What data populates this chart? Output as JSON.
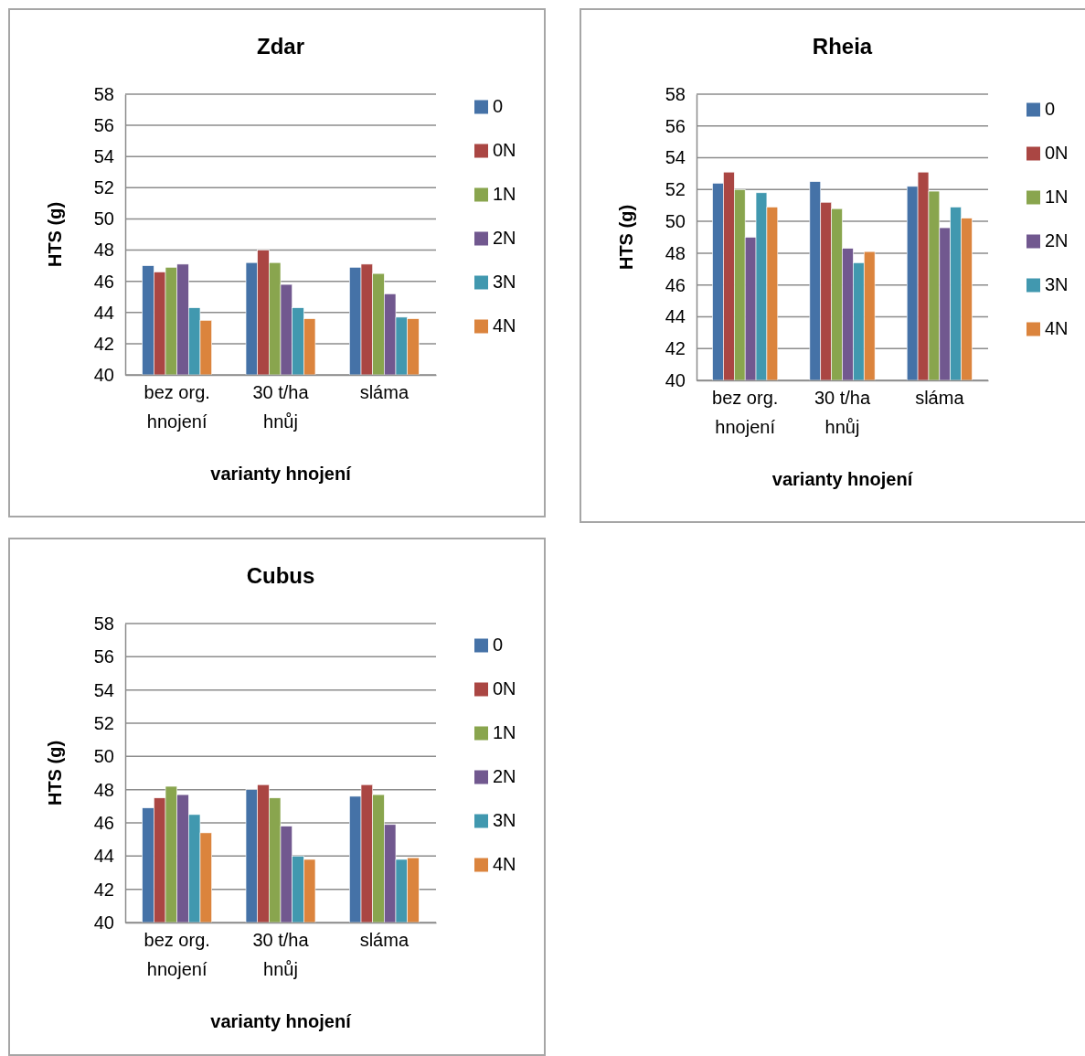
{
  "chart_data": [
    {
      "type": "bar",
      "title": "Zdar",
      "xlabel": "varianty hnojení",
      "ylabel": "HTS (g)",
      "categories": [
        "bez org. hnojení",
        "30 t/ha hnůj",
        "sláma"
      ],
      "ylim": [
        40,
        58
      ],
      "yticks": [
        40,
        42,
        44,
        46,
        48,
        50,
        52,
        54,
        56,
        58
      ],
      "grid": "y",
      "legend": "right",
      "series": [
        {
          "name": "0",
          "color": "#4572a7",
          "values": [
            47.0,
            47.2,
            46.9
          ]
        },
        {
          "name": "0N",
          "color": "#aa4643",
          "values": [
            46.6,
            48.0,
            47.1
          ]
        },
        {
          "name": "1N",
          "color": "#89a54e",
          "values": [
            46.9,
            47.2,
            46.5
          ]
        },
        {
          "name": "2N",
          "color": "#71588f",
          "values": [
            47.1,
            45.8,
            45.2
          ]
        },
        {
          "name": "3N",
          "color": "#4198af",
          "values": [
            44.3,
            44.3,
            43.7
          ]
        },
        {
          "name": "4N",
          "color": "#db843d",
          "values": [
            43.5,
            43.6,
            43.6
          ]
        }
      ]
    },
    {
      "type": "bar",
      "title": "Rheia",
      "xlabel": "varianty hnojení",
      "ylabel": "HTS (g)",
      "categories": [
        "bez org. hnojení",
        "30 t/ha hnůj",
        "sláma"
      ],
      "ylim": [
        40,
        58
      ],
      "yticks": [
        40,
        42,
        44,
        46,
        48,
        50,
        52,
        54,
        56,
        58
      ],
      "grid": "y",
      "legend": "right",
      "series": [
        {
          "name": "0",
          "color": "#4572a7",
          "values": [
            52.4,
            52.5,
            52.2
          ]
        },
        {
          "name": "0N",
          "color": "#aa4643",
          "values": [
            53.1,
            51.2,
            53.1
          ]
        },
        {
          "name": "1N",
          "color": "#89a54e",
          "values": [
            52.0,
            50.8,
            51.9
          ]
        },
        {
          "name": "2N",
          "color": "#71588f",
          "values": [
            49.0,
            48.3,
            49.6
          ]
        },
        {
          "name": "3N",
          "color": "#4198af",
          "values": [
            51.8,
            47.4,
            50.9
          ]
        },
        {
          "name": "4N",
          "color": "#db843d",
          "values": [
            50.9,
            48.1,
            50.2
          ]
        }
      ]
    },
    {
      "type": "bar",
      "title": "Cubus",
      "xlabel": "varianty hnojení",
      "ylabel": "HTS (g)",
      "categories": [
        "bez org. hnojení",
        "30 t/ha hnůj",
        "sláma"
      ],
      "ylim": [
        40,
        58
      ],
      "yticks": [
        40,
        42,
        44,
        46,
        48,
        50,
        52,
        54,
        56,
        58
      ],
      "grid": "y",
      "legend": "right",
      "series": [
        {
          "name": "0",
          "color": "#4572a7",
          "values": [
            46.9,
            48.0,
            47.6
          ]
        },
        {
          "name": "0N",
          "color": "#aa4643",
          "values": [
            47.5,
            48.3,
            48.3
          ]
        },
        {
          "name": "1N",
          "color": "#89a54e",
          "values": [
            48.2,
            47.5,
            47.7
          ]
        },
        {
          "name": "2N",
          "color": "#71588f",
          "values": [
            47.7,
            45.8,
            45.9
          ]
        },
        {
          "name": "3N",
          "color": "#4198af",
          "values": [
            46.5,
            44.0,
            43.8
          ]
        },
        {
          "name": "4N",
          "color": "#db843d",
          "values": [
            45.4,
            43.8,
            43.9
          ]
        }
      ]
    }
  ]
}
